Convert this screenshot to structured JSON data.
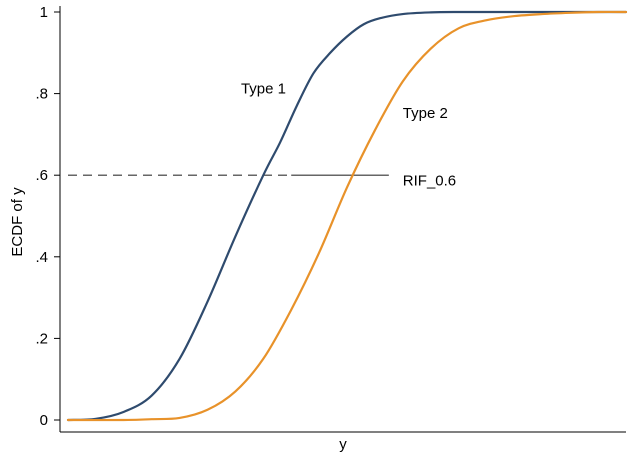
{
  "chart_data": {
    "type": "line",
    "title": "",
    "xlabel": "y",
    "ylabel": "ECDF of y",
    "ylim": [
      0,
      1
    ],
    "xlim": [
      0,
      1
    ],
    "x_ticks_shown": false,
    "y_ticks": [
      {
        "value": 0,
        "label": "0"
      },
      {
        "value": 0.2,
        "label": ".2"
      },
      {
        "value": 0.4,
        "label": ".4"
      },
      {
        "value": 0.6,
        "label": ".6"
      },
      {
        "value": 0.8,
        "label": ".8"
      },
      {
        "value": 1,
        "label": "1"
      }
    ],
    "grid": false,
    "legend": "none",
    "series": [
      {
        "name": "Type 1",
        "color": "#2f4b6e",
        "x": [
          0,
          0.05,
          0.1,
          0.15,
          0.2,
          0.25,
          0.3,
          0.35,
          0.38,
          0.41,
          0.44,
          0.47,
          0.5,
          0.53,
          0.56,
          0.6,
          0.65,
          0.7,
          0.75,
          0.8,
          0.9,
          1
        ],
        "y": [
          0,
          0.003,
          0.02,
          0.06,
          0.15,
          0.29,
          0.45,
          0.6,
          0.68,
          0.77,
          0.85,
          0.9,
          0.94,
          0.97,
          0.985,
          0.995,
          0.999,
          1,
          1,
          1,
          1,
          1
        ]
      },
      {
        "name": "Type 2",
        "color": "#e8922a",
        "x": [
          0,
          0.1,
          0.15,
          0.2,
          0.25,
          0.3,
          0.35,
          0.4,
          0.45,
          0.5,
          0.55,
          0.6,
          0.65,
          0.7,
          0.75,
          0.8,
          0.85,
          0.9,
          0.95,
          1
        ],
        "y": [
          0,
          0,
          0.002,
          0.005,
          0.025,
          0.07,
          0.15,
          0.27,
          0.41,
          0.57,
          0.71,
          0.83,
          0.91,
          0.96,
          0.98,
          0.99,
          0.995,
          0.998,
          1,
          1
        ]
      }
    ],
    "reference_line": {
      "y": 0.6,
      "x_start": 0,
      "x_type1": 0.4,
      "x_type2": 0.575
    },
    "annotations": [
      {
        "text": "Type 1",
        "x": 0.31,
        "y": 0.8,
        "anchor": "start"
      },
      {
        "text": "Type 2",
        "x": 0.6,
        "y": 0.74,
        "anchor": "start"
      },
      {
        "text": "RIF_0.6",
        "x": 0.6,
        "y": 0.575,
        "anchor": "start"
      }
    ]
  }
}
